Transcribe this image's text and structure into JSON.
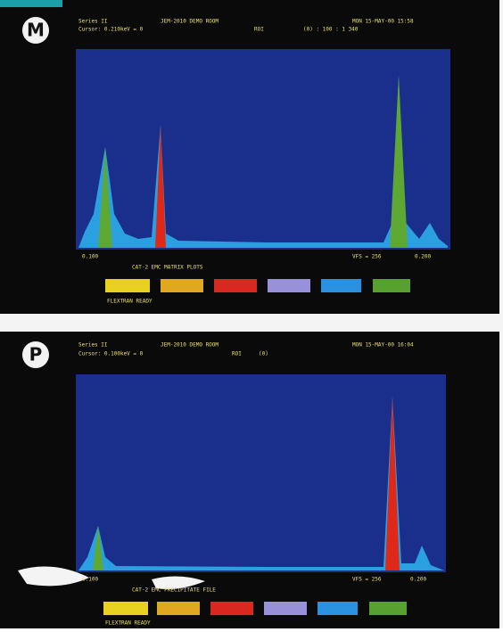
{
  "panels": [
    {
      "badge": "M",
      "header": [
        "Series II",
        "JEM-2010 DEMO ROOM",
        "MON 15-MAY-00 15:58"
      ],
      "cursor": [
        "Cursor: 0.210keV = 0",
        "ROI",
        "(0) : 100 : 1 340"
      ],
      "axis": [
        "0.100",
        "VFS = 256",
        "0.200"
      ],
      "caption": "CAT-2 EMC MATRIX PLOTS",
      "status": "FLEXTRAN READY"
    },
    {
      "badge": "P",
      "header": [
        "Series II",
        "JEM-2010 DEMO ROOM",
        "MON 15-MAY-00 16:04"
      ],
      "cursor": [
        "Cursor: 0.100keV = 0",
        "ROI",
        "(0)"
      ],
      "axis": [
        "0.100",
        "VFS = 256",
        "0.200"
      ],
      "caption": "CAT-2 EMC PRECIPITATE FILE",
      "status": "FLEXTRAN READY"
    }
  ]
}
